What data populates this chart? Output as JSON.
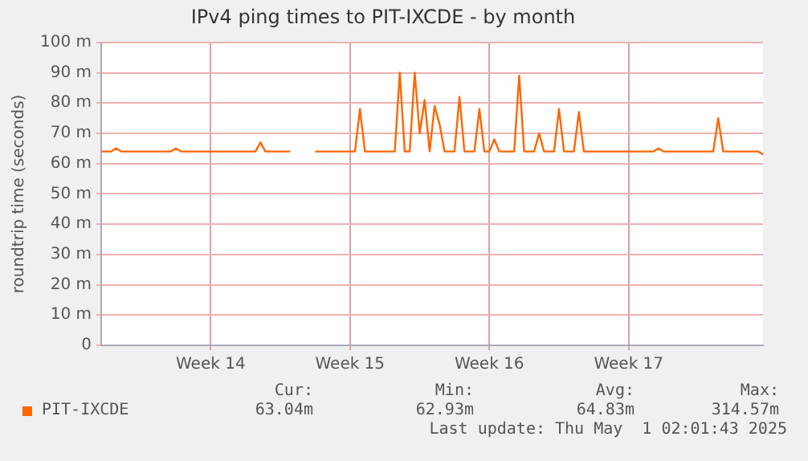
{
  "chart_data": {
    "type": "line",
    "title": "IPv4 ping times to PIT-IXCDE - by month",
    "ylabel": "roundtrip time (seconds)",
    "categories": [
      null,
      null,
      null,
      null,
      null,
      null,
      null,
      null,
      null,
      null,
      null,
      null,
      null,
      null,
      null,
      null,
      null,
      null,
      null,
      null,
      null,
      null,
      "Week 14",
      null,
      null,
      null,
      null,
      null,
      null,
      null,
      null,
      null,
      null,
      null,
      null,
      null,
      null,
      null,
      null,
      null,
      null,
      null,
      null,
      null,
      null,
      null,
      null,
      null,
      null,
      null,
      "Week 15",
      null,
      null,
      null,
      null,
      null,
      null,
      null,
      null,
      null,
      null,
      null,
      null,
      null,
      null,
      null,
      null,
      null,
      null,
      null,
      null,
      null,
      null,
      null,
      null,
      null,
      null,
      null,
      "Week 16",
      null,
      null,
      null,
      null,
      null,
      null,
      null,
      null,
      null,
      null,
      null,
      null,
      null,
      null,
      null,
      null,
      null,
      null,
      null,
      null,
      null,
      null,
      null,
      null,
      null,
      null,
      null,
      "Week 17",
      null,
      null,
      null,
      null,
      null,
      null,
      null,
      null,
      null,
      null,
      null,
      null,
      null,
      null,
      null,
      null,
      null,
      null,
      null,
      null,
      null,
      null,
      null,
      null,
      null,
      null,
      null
    ],
    "ylim": [
      0,
      100
    ],
    "yticks": [
      0,
      {
        "value": 10,
        "label": "10 m"
      },
      {
        "value": 20,
        "label": "20 m"
      },
      {
        "value": 30,
        "label": "30 m"
      },
      {
        "value": 40,
        "label": "40 m"
      },
      {
        "value": 50,
        "label": "50 m"
      },
      {
        "value": 60,
        "label": "60 m"
      },
      {
        "value": 70,
        "label": "70 m"
      },
      {
        "value": 80,
        "label": "80 m"
      },
      {
        "value": 90,
        "label": "90 m"
      },
      {
        "value": 100,
        "label": "100 m"
      }
    ],
    "grid": true,
    "legend": "bottom",
    "marker": "none",
    "line_style": "solid",
    "series": [
      {
        "name": "PIT-IXCDE",
        "color": "#ff6600",
        "values": [
          64,
          64,
          64,
          65,
          64,
          64,
          64,
          64,
          64,
          64,
          64,
          64,
          64,
          64,
          64,
          65,
          64,
          64,
          64,
          64,
          64,
          64,
          64,
          64,
          64,
          64,
          64,
          64,
          64,
          64,
          64,
          64,
          67,
          64,
          64,
          64,
          64,
          64,
          64,
          null,
          null,
          null,
          null,
          64,
          64,
          64,
          64,
          64,
          64,
          64,
          64,
          64,
          78,
          64,
          64,
          64,
          64,
          64,
          64,
          64,
          90,
          64,
          64,
          90,
          70,
          81,
          64,
          79,
          73,
          64,
          64,
          64,
          82,
          64,
          64,
          64,
          78,
          64,
          64,
          68,
          64,
          64,
          64,
          64,
          89,
          64,
          64,
          64,
          70,
          64,
          64,
          64,
          78,
          64,
          64,
          64,
          77,
          64,
          64,
          64,
          64,
          64,
          64,
          64,
          64,
          64,
          64,
          64,
          64,
          64,
          64,
          64,
          65,
          64,
          64,
          64,
          64,
          64,
          64,
          64,
          64,
          64,
          64,
          64,
          75,
          64,
          64,
          64,
          64,
          64,
          64,
          64,
          64,
          63
        ]
      }
    ],
    "annotations": [
      "Cur:",
      "63.04m",
      "Min:",
      "62.93m",
      "Avg:",
      "64.83m",
      "Max:",
      "314.57m",
      "Last update: Thu May  1 02:01:43 2025"
    ]
  }
}
